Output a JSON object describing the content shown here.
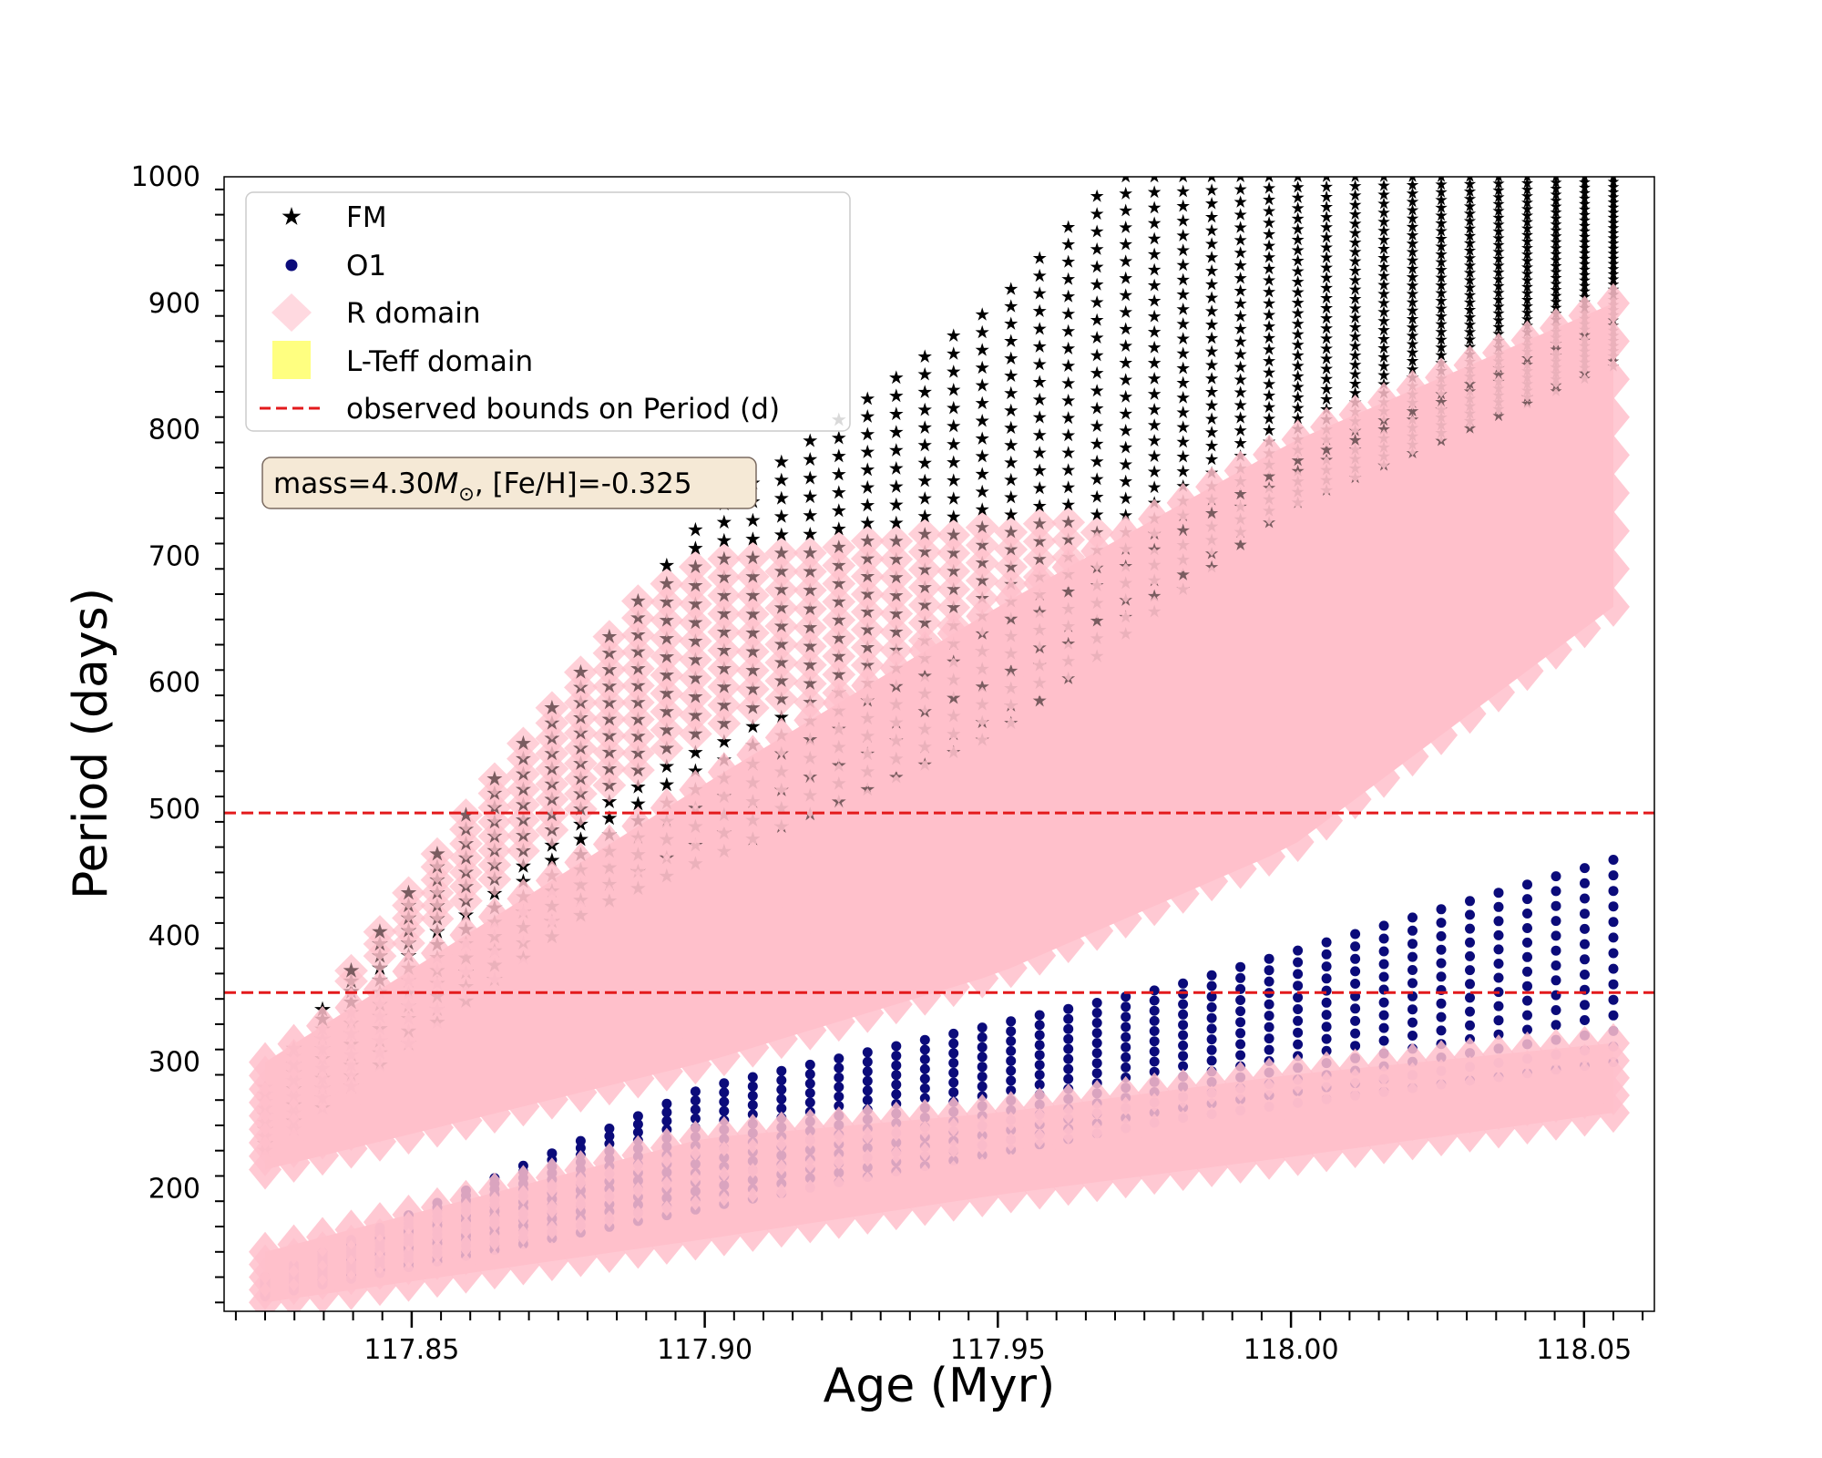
{
  "chart_data": {
    "type": "scatter",
    "title": "",
    "xlabel": "Age (Myr)",
    "ylabel": "Period (days)",
    "xlim": [
      117.818,
      118.062
    ],
    "ylim": [
      103,
      1000
    ],
    "x_ticks": [
      117.85,
      117.9,
      117.95,
      118.0,
      118.05
    ],
    "x_tick_labels": [
      "117.85",
      "117.90",
      "117.95",
      "118.00",
      "118.05"
    ],
    "y_ticks": [
      200,
      300,
      400,
      500,
      600,
      700,
      800,
      900,
      1000
    ],
    "y_tick_labels": [
      "200",
      "300",
      "400",
      "500",
      "600",
      "700",
      "800",
      "900",
      "1000"
    ],
    "age_columns": {
      "start": 117.825,
      "end": 118.055,
      "count": 48
    },
    "series": [
      {
        "name": "FM",
        "marker": "star",
        "color": "#000000",
        "period_lower_edge": [
          {
            "x": 117.825,
            "y": 230
          },
          {
            "x": 117.88,
            "y": 420
          },
          {
            "x": 117.95,
            "y": 560
          },
          {
            "x": 118.0,
            "y": 740
          },
          {
            "x": 118.055,
            "y": 850
          }
        ],
        "period_upper_edge": [
          {
            "x": 117.825,
            "y": 280
          },
          {
            "x": 117.86,
            "y": 500
          },
          {
            "x": 117.9,
            "y": 730
          },
          {
            "x": 117.95,
            "y": 900
          },
          {
            "x": 117.97,
            "y": 1000
          },
          {
            "x": 118.055,
            "y": 1000
          }
        ]
      },
      {
        "name": "O1",
        "marker": "circle",
        "color": "#0b0b7a",
        "period_lower_edge": [
          {
            "x": 117.825,
            "y": 115
          },
          {
            "x": 117.9,
            "y": 185
          },
          {
            "x": 117.98,
            "y": 255
          },
          {
            "x": 118.055,
            "y": 300
          }
        ],
        "period_upper_edge": [
          {
            "x": 117.825,
            "y": 130
          },
          {
            "x": 117.9,
            "y": 280
          },
          {
            "x": 117.98,
            "y": 360
          },
          {
            "x": 118.055,
            "y": 460
          }
        ]
      },
      {
        "name": "R domain",
        "marker": "diamond",
        "color": "#ffc0cb",
        "bands": [
          {
            "lower": [
              {
                "x": 117.825,
                "y": 215
              },
              {
                "x": 117.9,
                "y": 300
              },
              {
                "x": 117.95,
                "y": 370
              },
              {
                "x": 118.0,
                "y": 470
              },
              {
                "x": 118.055,
                "y": 660
              }
            ],
            "upper": [
              {
                "x": 117.825,
                "y": 300
              },
              {
                "x": 117.9,
                "y": 520
              },
              {
                "x": 117.95,
                "y": 660
              },
              {
                "x": 118.0,
                "y": 790
              },
              {
                "x": 118.055,
                "y": 900
              }
            ]
          },
          {
            "lower": [
              {
                "x": 117.825,
                "y": 110
              },
              {
                "x": 117.9,
                "y": 160
              },
              {
                "x": 117.95,
                "y": 195
              },
              {
                "x": 118.0,
                "y": 225
              },
              {
                "x": 118.055,
                "y": 260
              }
            ],
            "upper": [
              {
                "x": 117.825,
                "y": 150
              },
              {
                "x": 117.9,
                "y": 240
              },
              {
                "x": 117.95,
                "y": 260
              },
              {
                "x": 118.0,
                "y": 290
              },
              {
                "x": 118.055,
                "y": 315
              }
            ]
          }
        ],
        "halo_region": {
          "lower": [
            {
              "x": 117.83,
              "y": 330
            },
            {
              "x": 117.9,
              "y": 560
            },
            {
              "x": 117.95,
              "y": 620
            }
          ],
          "upper": [
            {
              "x": 117.83,
              "y": 360
            },
            {
              "x": 117.86,
              "y": 500
            },
            {
              "x": 117.89,
              "y": 690
            },
            {
              "x": 117.95,
              "y": 730
            }
          ]
        }
      },
      {
        "name": "L-Teff domain",
        "marker": "square",
        "color": "#ffff80",
        "points": []
      }
    ],
    "hlines": [
      {
        "y": 497,
        "style": "dashed",
        "color": "#e31a1c",
        "legend": "observed bounds on Period (d)"
      },
      {
        "y": 355,
        "style": "dashed",
        "color": "#e31a1c"
      }
    ],
    "legend": {
      "position": "upper-left",
      "entries": [
        "FM",
        "O1",
        "R domain",
        "L-Teff domain",
        "observed bounds on Period (d)"
      ]
    },
    "annotation": {
      "prefix": "mass=4.30",
      "symbol": "M",
      "subscript": "⊙",
      "suffix": ", [Fe/H]=-0.325",
      "box_color": "#f5e9d6"
    },
    "colors": {
      "fm": "#000000",
      "fm_overlap": "#7a5c60",
      "o1": "#0b0b7a",
      "r_domain": "#ffc0cb",
      "l_teff": "#ffff80",
      "bounds": "#e31a1c"
    }
  }
}
